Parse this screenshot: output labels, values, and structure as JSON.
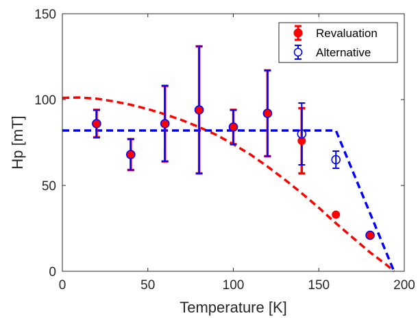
{
  "chart_data": {
    "type": "scatter",
    "xlabel": "Temperature [K]",
    "ylabel": "Hp [mT]",
    "xlim": [
      0,
      200
    ],
    "ylim": [
      0,
      150
    ],
    "xticks": [
      0,
      50,
      100,
      150,
      200
    ],
    "yticks": [
      0,
      50,
      100,
      150
    ],
    "grid": false,
    "legend_position": "top-right",
    "series": [
      {
        "name": "Revaluation",
        "style": "filled-circle-errorbar",
        "color": "#ff0000",
        "x": [
          20,
          40,
          60,
          80,
          100,
          120,
          140,
          160,
          180
        ],
        "y": [
          86,
          68,
          86,
          94,
          84,
          92,
          76,
          33,
          21
        ],
        "err": [
          8,
          9,
          22,
          37,
          10,
          25,
          19,
          0,
          0
        ]
      },
      {
        "name": "Alternative",
        "style": "open-circle-errorbar",
        "color": "#0000ff",
        "x": [
          20,
          40,
          60,
          80,
          100,
          120,
          140,
          160,
          180
        ],
        "y": [
          86,
          68,
          86,
          94,
          84,
          92,
          80,
          65,
          21
        ],
        "err": [
          8,
          9,
          22,
          37,
          10,
          25,
          18,
          5,
          0
        ]
      }
    ],
    "fits": [
      {
        "color": "#ff0000",
        "style": "dashed",
        "x": [
          0,
          10,
          20,
          30,
          40,
          50,
          60,
          70,
          80,
          90,
          100,
          110,
          120,
          130,
          140,
          150,
          160,
          170,
          180,
          190,
          194
        ],
        "y": [
          101,
          101.2,
          100.5,
          99,
          97,
          94.5,
          91.5,
          88,
          84,
          79.5,
          74,
          68,
          61,
          53.5,
          45.5,
          37,
          28,
          19.5,
          11,
          3.5,
          0
        ]
      },
      {
        "color": "#0000ff",
        "style": "dashed",
        "x": [
          0,
          160,
          194
        ],
        "y": [
          82,
          82,
          0
        ]
      }
    ]
  }
}
